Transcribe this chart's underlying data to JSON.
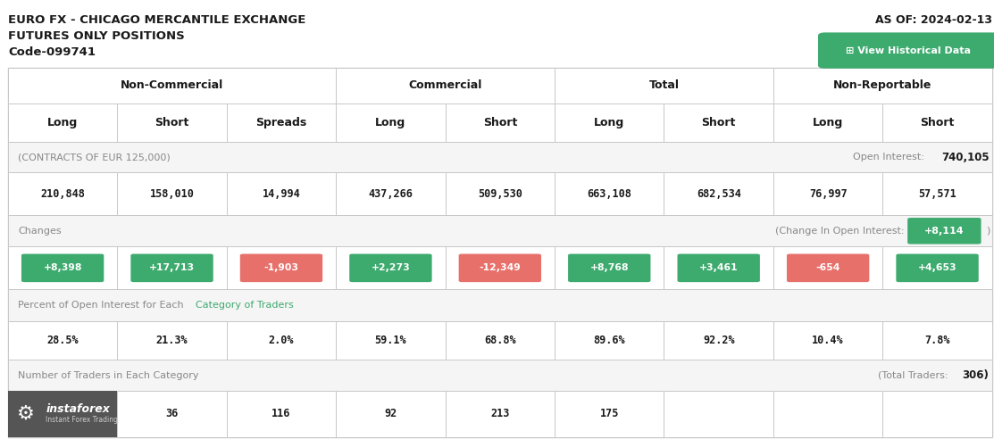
{
  "title_line1": "EURO FX - CHICAGO MERCANTILE EXCHANGE",
  "title_line2": "FUTURES ONLY POSITIONS",
  "title_line3": "Code-099741",
  "as_of": "AS OF: 2024-02-13",
  "view_historical": "⊞ View Historical Data",
  "header2_cols": [
    "Long",
    "Short",
    "Spreads",
    "Long",
    "Short",
    "Long",
    "Short",
    "Long",
    "Short"
  ],
  "contracts_label": "(CONTRACTS OF EUR 125,000)",
  "open_interest_label": "Open Interest: ",
  "open_interest_value": "740,105",
  "main_values": [
    "210,848",
    "158,010",
    "14,994",
    "437,266",
    "509,530",
    "663,108",
    "682,534",
    "76,997",
    "57,571"
  ],
  "changes_label": "Changes",
  "change_oi_label": "(Change In Open Interest: ",
  "change_oi_value": "+8,114",
  "change_oi_positive": true,
  "change_values": [
    "+8,398",
    "+17,713",
    "-1,903",
    "+2,273",
    "-12,349",
    "+8,768",
    "+3,461",
    "-654",
    "+4,653"
  ],
  "change_positive": [
    true,
    true,
    false,
    true,
    false,
    true,
    true,
    false,
    true
  ],
  "pct_part1": "Percent of Open Interest for Each ",
  "pct_part2": "Category of Traders",
  "pct_values": [
    "28.5%",
    "21.3%",
    "2.0%",
    "59.1%",
    "68.8%",
    "89.6%",
    "92.2%",
    "10.4%",
    "7.8%"
  ],
  "traders_label": "Number of Traders in Each Category",
  "total_traders_label": "(Total Traders: ",
  "total_traders_value": "306)",
  "traders_values": [
    "",
    "36",
    "116",
    "92",
    "213",
    "175",
    "",
    "",
    ""
  ],
  "green_color": "#3daa6e",
  "red_color": "#e8706a",
  "row_bg_light": "#f5f5f5",
  "row_bg_white": "#ffffff",
  "border_color": "#d0d0d0",
  "text_dark": "#1a1a1a",
  "text_gray": "#888888",
  "text_green_label": "#3daa6e",
  "logo_bg": "#555555",
  "title_color": "#1a1a1a"
}
